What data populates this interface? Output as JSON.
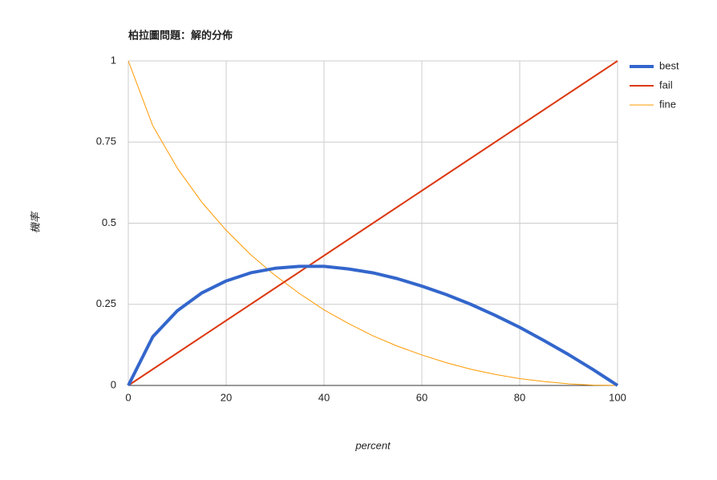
{
  "chart_data": {
    "type": "line",
    "title": "柏拉圖問題：解的分佈",
    "x_label": "percent",
    "y_label": "機率",
    "x": [
      0,
      5,
      10,
      15,
      20,
      25,
      30,
      35,
      40,
      45,
      50,
      55,
      60,
      65,
      70,
      75,
      80,
      85,
      90,
      95,
      100
    ],
    "series": [
      {
        "name": "best",
        "color": "#3366cc",
        "width": 4,
        "values": [
          0,
          0.15,
          0.23,
          0.285,
          0.322,
          0.347,
          0.361,
          0.367,
          0.367,
          0.359,
          0.347,
          0.329,
          0.306,
          0.28,
          0.25,
          0.216,
          0.179,
          0.138,
          0.095,
          0.049,
          0
        ]
      },
      {
        "name": "fail",
        "color": "#dc3912",
        "width": 2,
        "values": [
          0,
          0.05,
          0.1,
          0.15,
          0.2,
          0.25,
          0.3,
          0.35,
          0.4,
          0.45,
          0.5,
          0.55,
          0.6,
          0.65,
          0.7,
          0.75,
          0.8,
          0.85,
          0.9,
          0.95,
          1
        ]
      },
      {
        "name": "fine",
        "color": "#ff9900",
        "width": 1,
        "values": [
          1,
          0.8,
          0.67,
          0.565,
          0.478,
          0.403,
          0.339,
          0.283,
          0.233,
          0.191,
          0.153,
          0.121,
          0.094,
          0.07,
          0.05,
          0.034,
          0.021,
          0.012,
          0.005,
          0.001,
          0
        ]
      }
    ],
    "xlim": [
      0,
      100
    ],
    "xticks": [
      0,
      20,
      40,
      60,
      80,
      100
    ],
    "ylim": [
      0,
      1
    ],
    "yticks": [
      0,
      0.25,
      0.5,
      0.75,
      1
    ],
    "grid": true,
    "legend": "right"
  }
}
